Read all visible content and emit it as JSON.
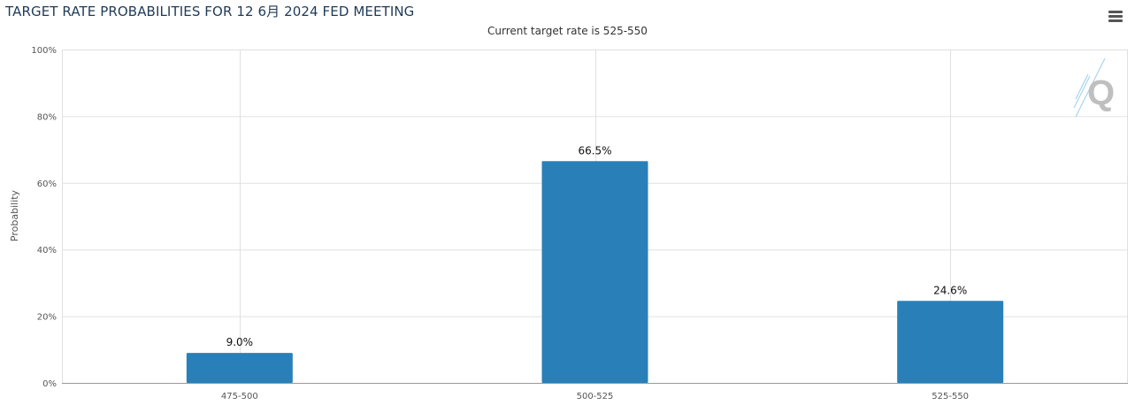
{
  "header": {
    "title": "TARGET RATE PROBABILITIES FOR 12 6月 2024 FED MEETING",
    "subtitle": "Current target rate is 525-550",
    "menu_icon": "hamburger-menu-icon"
  },
  "watermark": {
    "letter": "Q"
  },
  "colors": {
    "bar": "#2980b9",
    "grid": "#e0e0e0",
    "axis": "#999999"
  },
  "chart_data": {
    "type": "bar",
    "title": "TARGET RATE PROBABILITIES FOR 12 6月 2024 FED MEETING",
    "subtitle": "Current target rate is 525-550",
    "categories": [
      "475-500",
      "500-525",
      "525-550"
    ],
    "values": [
      9.0,
      66.5,
      24.6
    ],
    "data_labels": [
      "9.0%",
      "66.5%",
      "24.6%"
    ],
    "xlabel": "",
    "ylabel": "Probability",
    "ylim": [
      0,
      100
    ],
    "yticks": [
      "0%",
      "20%",
      "40%",
      "60%",
      "80%",
      "100%"
    ],
    "ytick_values": [
      0,
      20,
      40,
      60,
      80,
      100
    ],
    "grid": true,
    "legend": "none"
  }
}
